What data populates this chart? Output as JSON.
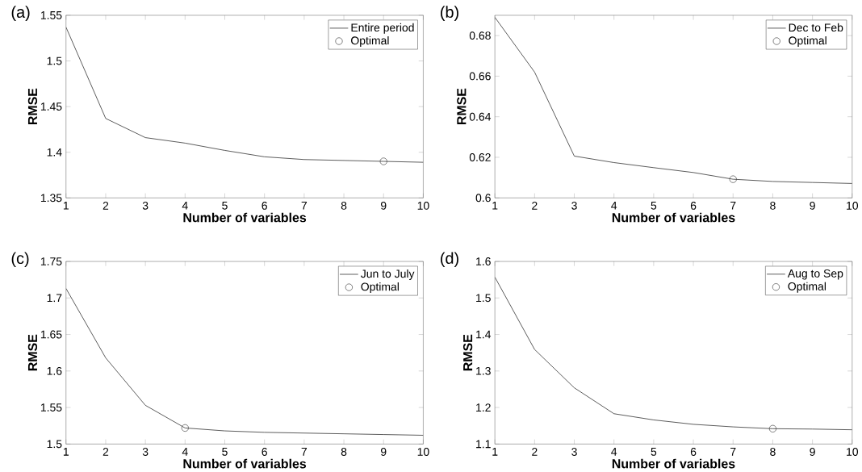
{
  "chart_data": [
    {
      "type": "line",
      "title": "(a)",
      "xlabel": "Number of variables",
      "ylabel": "RMSE",
      "xlim": [
        1,
        10
      ],
      "ylim": [
        1.35,
        1.55
      ],
      "xticks": [
        1,
        2,
        3,
        4,
        5,
        6,
        7,
        8,
        9,
        10
      ],
      "yticks": [
        1.35,
        1.4,
        1.45,
        1.5,
        1.55
      ],
      "legend": "top right",
      "series": [
        {
          "name": "Entire period",
          "color": "#333333",
          "x": [
            1,
            2,
            3,
            4,
            5,
            6,
            7,
            8,
            9,
            10
          ],
          "values": [
            1.537,
            1.437,
            1.416,
            1.41,
            1.402,
            1.395,
            1.392,
            1.391,
            1.39,
            1.389
          ]
        },
        {
          "name": "Optimal",
          "type": "scatter",
          "marker": "circle",
          "color": "#444444",
          "x": [
            9
          ],
          "values": [
            1.39
          ]
        }
      ]
    },
    {
      "type": "line",
      "title": "(b)",
      "xlabel": "Number of variables",
      "ylabel": "RMSE",
      "xlim": [
        1,
        10
      ],
      "ylim": [
        0.6,
        0.69
      ],
      "xticks": [
        1,
        2,
        3,
        4,
        5,
        6,
        7,
        8,
        9,
        10
      ],
      "yticks": [
        0.6,
        0.62,
        0.64,
        0.66,
        0.68
      ],
      "legend": "top right",
      "series": [
        {
          "name": "Dec to Feb",
          "color": "#333333",
          "x": [
            1,
            2,
            3,
            4,
            5,
            6,
            7,
            8,
            9,
            10
          ],
          "values": [
            0.689,
            0.662,
            0.6206,
            0.6174,
            0.6149,
            0.6125,
            0.6092,
            0.6081,
            0.6076,
            0.6071
          ]
        },
        {
          "name": "Optimal",
          "type": "scatter",
          "marker": "circle",
          "color": "#444444",
          "x": [
            7
          ],
          "values": [
            0.6092
          ]
        }
      ]
    },
    {
      "type": "line",
      "title": "(c)",
      "xlabel": "Number of variables",
      "ylabel": "RMSE",
      "xlim": [
        1,
        10
      ],
      "ylim": [
        1.5,
        1.75
      ],
      "xticks": [
        1,
        2,
        3,
        4,
        5,
        6,
        7,
        8,
        9,
        10
      ],
      "yticks": [
        1.5,
        1.55,
        1.6,
        1.65,
        1.7,
        1.75
      ],
      "legend": "top right",
      "series": [
        {
          "name": "Jun to July",
          "color": "#333333",
          "x": [
            1,
            2,
            3,
            4,
            5,
            6,
            7,
            8,
            9,
            10
          ],
          "values": [
            1.713,
            1.618,
            1.553,
            1.522,
            1.518,
            1.516,
            1.515,
            1.514,
            1.513,
            1.512
          ]
        },
        {
          "name": "Optimal",
          "type": "scatter",
          "marker": "circle",
          "color": "#444444",
          "x": [
            4
          ],
          "values": [
            1.522
          ]
        }
      ]
    },
    {
      "type": "line",
      "title": "(d)",
      "xlabel": "Number of variables",
      "ylabel": "RMSE",
      "xlim": [
        1,
        10
      ],
      "ylim": [
        1.1,
        1.6
      ],
      "xticks": [
        1,
        2,
        3,
        4,
        5,
        6,
        7,
        8,
        9,
        10
      ],
      "yticks": [
        1.1,
        1.2,
        1.3,
        1.4,
        1.5,
        1.6
      ],
      "legend": "top right",
      "series": [
        {
          "name": "Aug to Sep",
          "color": "#333333",
          "x": [
            1,
            2,
            3,
            4,
            5,
            6,
            7,
            8,
            9,
            10
          ],
          "values": [
            1.557,
            1.359,
            1.254,
            1.183,
            1.166,
            1.154,
            1.147,
            1.142,
            1.141,
            1.139
          ]
        },
        {
          "name": "Optimal",
          "type": "scatter",
          "marker": "circle",
          "color": "#444444",
          "x": [
            8
          ],
          "values": [
            1.142
          ]
        }
      ]
    }
  ]
}
